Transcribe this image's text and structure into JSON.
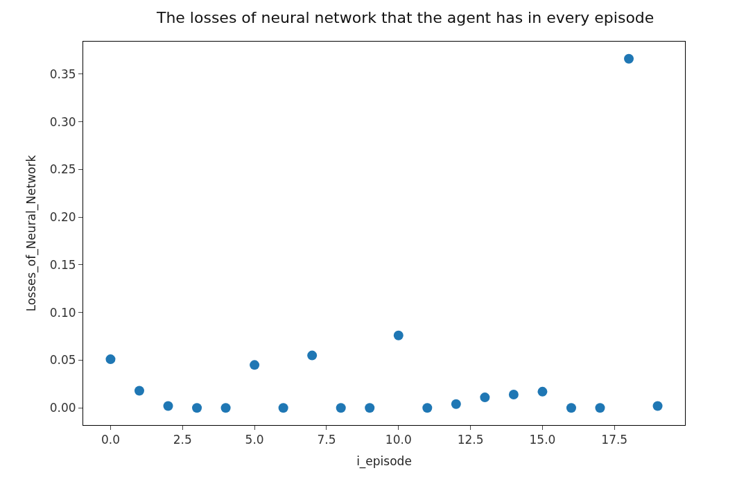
{
  "chart_data": {
    "type": "scatter",
    "title": "The losses of neural network that the agent has in every episode",
    "xlabel": "i_episode",
    "ylabel": "Losses_of_Neural_Network",
    "x": [
      0,
      1,
      2,
      3,
      4,
      5,
      6,
      7,
      8,
      9,
      10,
      11,
      12,
      13,
      14,
      15,
      16,
      17,
      18,
      19
    ],
    "series": [
      {
        "color": "#1f77b4",
        "values": [
          0.051,
          0.018,
          0.002,
          0.0,
          0.0,
          0.045,
          0.0,
          0.055,
          0.0,
          0.0,
          0.076,
          0.0,
          0.004,
          0.011,
          0.014,
          0.017,
          0.0,
          0.0,
          0.366,
          0.002
        ]
      }
    ],
    "xlim": [
      -0.95,
      19.95
    ],
    "xticks": [
      {
        "value": 0,
        "label": "0.0"
      },
      {
        "value": 2.5,
        "label": "2.5"
      },
      {
        "value": 5,
        "label": "5.0"
      },
      {
        "value": 7.5,
        "label": "7.5"
      },
      {
        "value": 10,
        "label": "10.0"
      },
      {
        "value": 12.5,
        "label": "12.5"
      },
      {
        "value": 15,
        "label": "15.0"
      },
      {
        "value": 17.5,
        "label": "17.5"
      }
    ],
    "ylim": [
      -0.018,
      0.384
    ],
    "yticks": [
      {
        "value": 0,
        "label": "0.00"
      },
      {
        "value": 0.05,
        "label": "0.05"
      },
      {
        "value": 0.1,
        "label": "0.10"
      },
      {
        "value": 0.15,
        "label": "0.15"
      },
      {
        "value": 0.2,
        "label": "0.20"
      },
      {
        "value": 0.25,
        "label": "0.25"
      },
      {
        "value": 0.3,
        "label": "0.30"
      },
      {
        "value": 0.35,
        "label": "0.35"
      }
    ],
    "marker": "circle",
    "legend": false
  }
}
